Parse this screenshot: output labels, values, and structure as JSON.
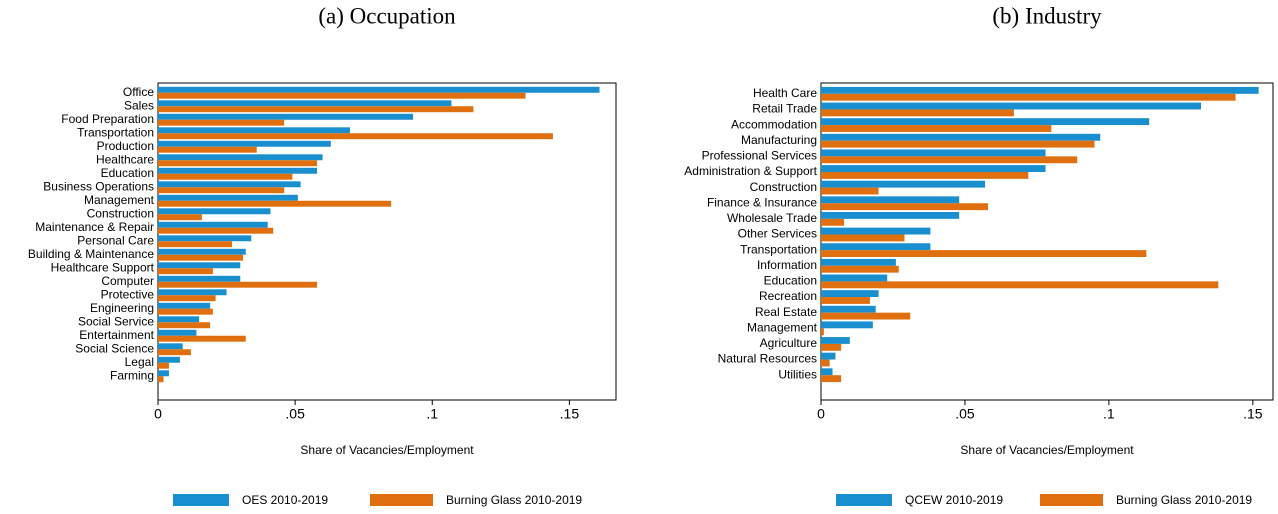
{
  "chart_data": [
    {
      "type": "barh",
      "title": "(a) Occupation",
      "x_label": "Share of Vacancies/Employment",
      "categories": [
        "Office",
        "Sales",
        "Food Preparation",
        "Transportation",
        "Production",
        "Healthcare",
        "Education",
        "Business Operations",
        "Management",
        "Construction",
        "Maintenance & Repair",
        "Personal Care",
        "Building & Maintenance",
        "Healthcare Support",
        "Computer",
        "Protective",
        "Engineering",
        "Social Service",
        "Entertainment",
        "Social Science",
        "Legal",
        "Farming"
      ],
      "series": [
        {
          "name": "OES 2010-2019",
          "color": "#1a8fcf",
          "values": [
            0.161,
            0.107,
            0.093,
            0.07,
            0.063,
            0.06,
            0.058,
            0.052,
            0.051,
            0.041,
            0.04,
            0.034,
            0.032,
            0.03,
            0.03,
            0.025,
            0.019,
            0.015,
            0.014,
            0.009,
            0.008,
            0.004
          ]
        },
        {
          "name": "Burning Glass 2010-2019",
          "color": "#e0700f",
          "values": [
            0.134,
            0.115,
            0.046,
            0.144,
            0.036,
            0.058,
            0.049,
            0.046,
            0.085,
            0.016,
            0.042,
            0.027,
            0.031,
            0.02,
            0.058,
            0.021,
            0.02,
            0.019,
            0.032,
            0.012,
            0.004,
            0.002
          ]
        }
      ],
      "xlim": [
        0,
        0.167
      ],
      "xticks": [
        0,
        {
          "value": 0.05,
          "label": ".05"
        },
        {
          "value": 0.1,
          "label": ".1"
        },
        {
          "value": 0.15,
          "label": ".15"
        }
      ]
    },
    {
      "type": "barh",
      "title": "(b) Industry",
      "x_label": "Share of Vacancies/Employment",
      "categories": [
        "Health Care",
        "Retail Trade",
        "Accommodation",
        "Manufacturing",
        "Professional Services",
        "Administration & Support",
        "Construction",
        "Finance & Insurance",
        "Wholesale Trade",
        "Other Services",
        "Transportation",
        "Information",
        "Education",
        "Recreation",
        "Real Estate",
        "Management",
        "Agriculture",
        "Natural Resources",
        "Utilities"
      ],
      "series": [
        {
          "name": "QCEW 2010-2019",
          "color": "#1a8fcf",
          "values": [
            0.152,
            0.132,
            0.114,
            0.097,
            0.078,
            0.078,
            0.057,
            0.048,
            0.048,
            0.038,
            0.038,
            0.026,
            0.023,
            0.02,
            0.019,
            0.018,
            0.01,
            0.005,
            0.004
          ]
        },
        {
          "name": "Burning Glass 2010-2019",
          "color": "#e0700f",
          "values": [
            0.144,
            0.067,
            0.08,
            0.095,
            0.089,
            0.072,
            0.02,
            0.058,
            0.008,
            0.029,
            0.113,
            0.027,
            0.138,
            0.017,
            0.031,
            0.001,
            0.007,
            0.003,
            0.007
          ]
        }
      ],
      "xlim": [
        0,
        0.157
      ],
      "xticks": [
        0,
        {
          "value": 0.05,
          "label": ".05"
        },
        {
          "value": 0.1,
          "label": ".1"
        },
        {
          "value": 0.15,
          "label": ".15"
        }
      ]
    }
  ]
}
